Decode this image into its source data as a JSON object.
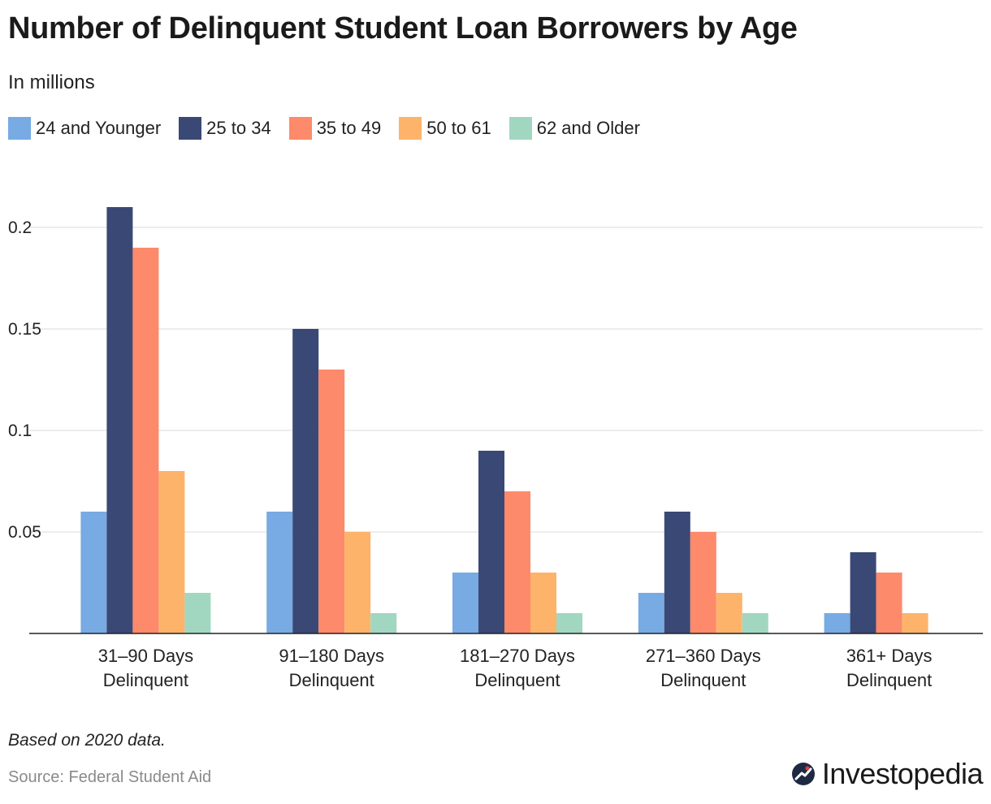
{
  "header": {
    "title": "Number of Delinquent Student Loan Borrowers by Age",
    "subtitle": "In millions"
  },
  "footer": {
    "note": "Based on 2020 data.",
    "source": "Source: Federal Student Aid",
    "brand": "Investopedia"
  },
  "chart_data": {
    "type": "bar",
    "title": "Number of Delinquent Student Loan Borrowers by Age",
    "subtitle": "In millions",
    "xlabel": "",
    "ylabel": "",
    "ylim": [
      0,
      0.22
    ],
    "yticks": [
      0.05,
      0.1,
      0.15,
      0.2
    ],
    "ytick_labels": [
      "0.05",
      "0.1",
      "0.15",
      "0.2"
    ],
    "grid": true,
    "legend_position": "top-left",
    "categories": [
      [
        "31–90 Days",
        "Delinquent"
      ],
      [
        "91–180 Days",
        "Delinquent"
      ],
      [
        "181–270 Days",
        "Delinquent"
      ],
      [
        "271–360 Days",
        "Delinquent"
      ],
      [
        "361+ Days",
        "Delinquent"
      ]
    ],
    "series": [
      {
        "name": "24 and Younger",
        "color": "#78aae3",
        "values": [
          0.06,
          0.06,
          0.03,
          0.02,
          0.01
        ]
      },
      {
        "name": "25 to 34",
        "color": "#3a4876",
        "values": [
          0.21,
          0.15,
          0.09,
          0.06,
          0.04
        ]
      },
      {
        "name": "35 to 49",
        "color": "#fd8a6a",
        "values": [
          0.19,
          0.13,
          0.07,
          0.05,
          0.03
        ]
      },
      {
        "name": "50 to 61",
        "color": "#feb36b",
        "values": [
          0.08,
          0.05,
          0.03,
          0.02,
          0.01
        ]
      },
      {
        "name": "62 and Older",
        "color": "#a1d7c1",
        "values": [
          0.02,
          0.01,
          0.01,
          0.01,
          0
        ]
      }
    ]
  }
}
